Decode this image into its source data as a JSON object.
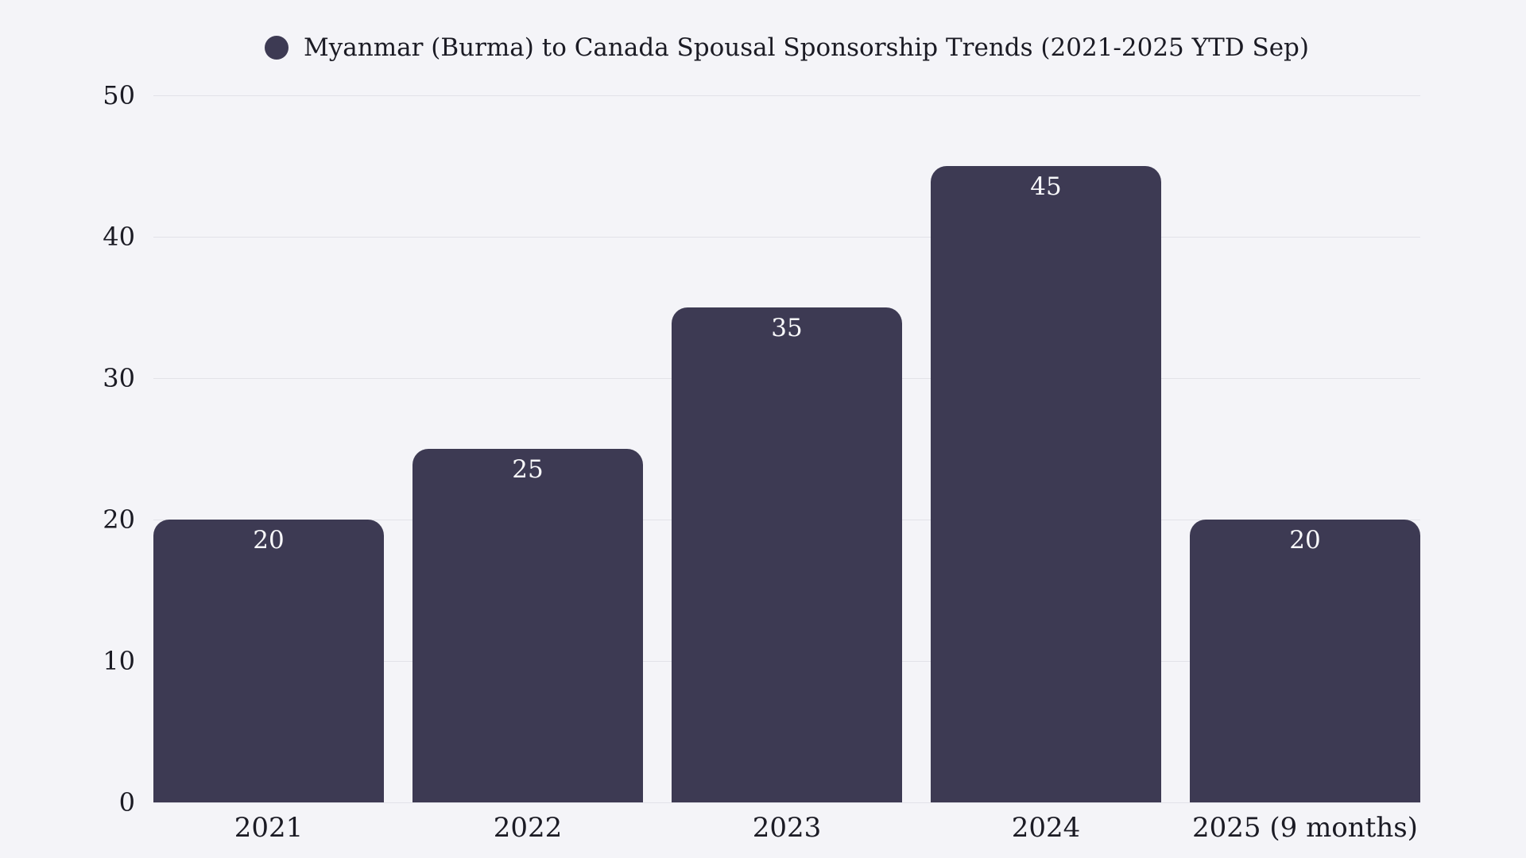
{
  "chart_data": {
    "type": "bar",
    "title": "Myanmar (Burma) to Canada Spousal Sponsorship Trends (2021-2025 YTD Sep)",
    "categories": [
      "2021",
      "2022",
      "2023",
      "2024",
      "2025 (9 months)"
    ],
    "values": [
      20,
      25,
      35,
      45,
      20
    ],
    "bar_labels": [
      "20",
      "25",
      "35",
      "45",
      "20"
    ],
    "series_name": "Myanmar (Burma) to Canada Spousal Sponsorship Trends (2021-2025 YTD Sep)",
    "xlabel": "",
    "ylabel": "",
    "ylim": [
      0,
      50
    ],
    "yticks": [
      "0",
      "10",
      "20",
      "30",
      "40",
      "50"
    ],
    "grid": "horizontal",
    "legend_position": "top-center",
    "legend_marker": "circle-icon",
    "colors": {
      "bar": "#3d3a53",
      "background": "#f4f4f8",
      "gridline": "#e2e2e8",
      "axis_text": "#1b1b24",
      "bar_label_text": "#f8f8fa"
    }
  }
}
